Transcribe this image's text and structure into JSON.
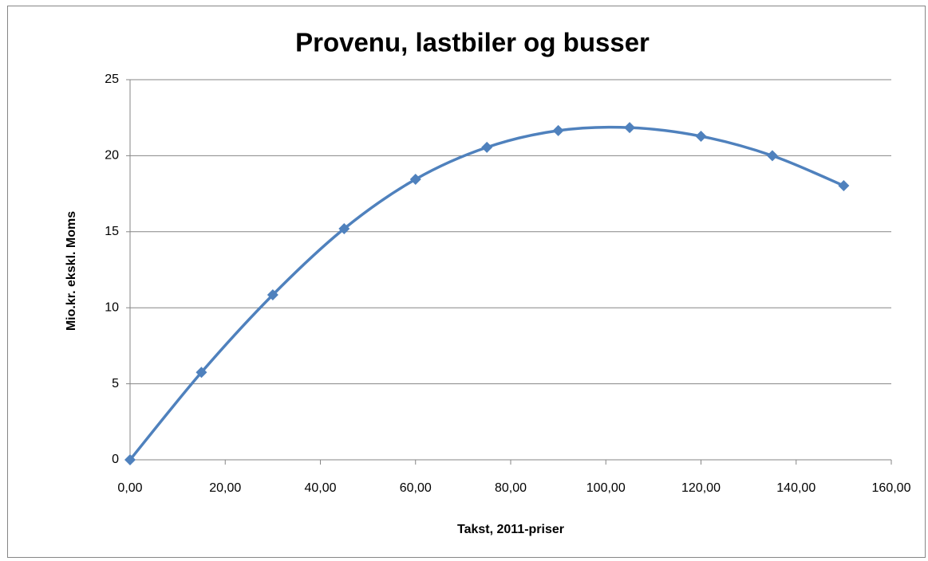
{
  "chart_data": {
    "type": "scatter-smooth",
    "title": "Provenu, lastbiler og busser",
    "xlabel": "Takst, 2011-priser",
    "ylabel": "Mio.kr. ekskl. Moms",
    "x": [
      0,
      15,
      30,
      45,
      60,
      75,
      90,
      105,
      120,
      135,
      150
    ],
    "series": [
      {
        "name": "Provenu",
        "color": "#4f81bd",
        "values": [
          0,
          5.75,
          10.85,
          15.2,
          18.45,
          20.55,
          21.65,
          21.85,
          21.28,
          20.0,
          18.03
        ]
      }
    ],
    "xlim": [
      0,
      160
    ],
    "xticks": [
      {
        "value": 0,
        "label": "0,00"
      },
      {
        "value": 20,
        "label": "20,00"
      },
      {
        "value": 40,
        "label": "40,00"
      },
      {
        "value": 60,
        "label": "60,00"
      },
      {
        "value": 80,
        "label": "80,00"
      },
      {
        "value": 100,
        "label": "100,00"
      },
      {
        "value": 120,
        "label": "120,00"
      },
      {
        "value": 140,
        "label": "140,00"
      },
      {
        "value": 160,
        "label": "160,00"
      }
    ],
    "ylim": [
      0,
      25
    ],
    "yticks": [
      0,
      5,
      10,
      15,
      20,
      25
    ],
    "grid": true
  }
}
